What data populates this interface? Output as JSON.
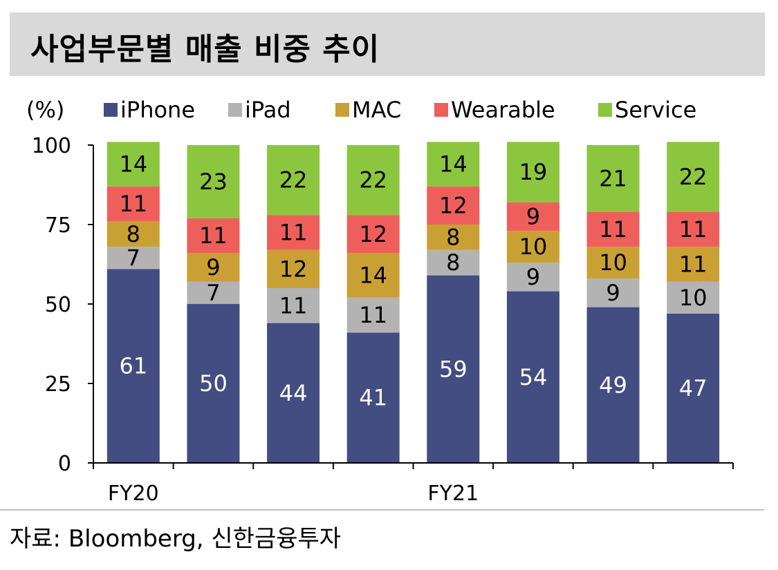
{
  "title": "사업부문별 매출 비중 추이",
  "source": "자료: Bloomberg, 신한금융투자",
  "chart_data": {
    "type": "bar",
    "stacked": true,
    "unit_label": "(%)",
    "ylim": [
      0,
      100
    ],
    "yticks": [
      "0",
      "25",
      "50",
      "75",
      "100"
    ],
    "x_labels": [
      {
        "text": "FY20",
        "index": 0
      },
      {
        "text": "FY21",
        "index": 4
      }
    ],
    "legend_position": "top",
    "series": [
      {
        "name": "iPhone",
        "color": "#434d82",
        "label_color": "#ffffff",
        "values": [
          61,
          50,
          44,
          41,
          59,
          54,
          49,
          47
        ]
      },
      {
        "name": "iPad",
        "color": "#b3b3b3",
        "label_color": "#000000",
        "values": [
          7,
          7,
          11,
          11,
          8,
          9,
          9,
          10
        ]
      },
      {
        "name": "MAC",
        "color": "#c9a033",
        "label_color": "#000000",
        "values": [
          8,
          9,
          12,
          14,
          8,
          10,
          10,
          11
        ]
      },
      {
        "name": "Wearable",
        "color": "#ee5f5b",
        "label_color": "#000000",
        "values": [
          11,
          11,
          11,
          12,
          12,
          9,
          11,
          11
        ]
      },
      {
        "name": "Service",
        "color": "#8cc63e",
        "label_color": "#000000",
        "values": [
          14,
          23,
          22,
          22,
          14,
          19,
          21,
          22
        ]
      }
    ]
  }
}
